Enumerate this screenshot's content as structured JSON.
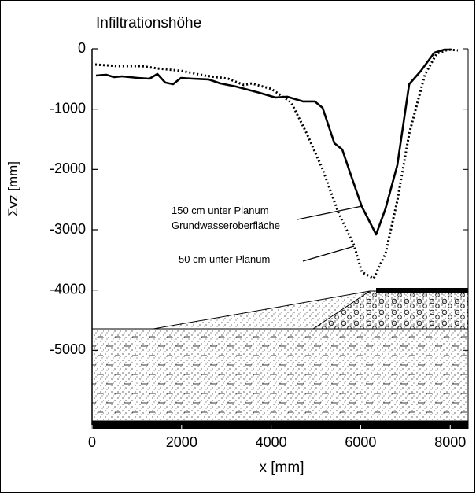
{
  "chart_data": {
    "type": "line",
    "title": "Infiltrationshöhe",
    "x_label": "x [mm]",
    "y_label": "Σvz [mm]",
    "xlim": [
      0,
      8400
    ],
    "xticks": [
      0,
      2000,
      4000,
      6000,
      8000
    ],
    "ylim": [
      -6300,
      0
    ],
    "yticks": [
      0,
      -1000,
      -2000,
      -3000,
      -4000,
      -5000
    ],
    "annotation": "Grundwasseroberfläche",
    "series": [
      {
        "name": "150 cm unter Planum",
        "color": "#000000",
        "dash": "solid",
        "x": [
          88,
          316,
          492,
          668,
          1019,
          1283,
          1459,
          1634,
          1810,
          1986,
          2250,
          2601,
          2865,
          3216,
          3743,
          4095,
          4359,
          4710,
          4974,
          5149,
          5413,
          5589,
          5765,
          6028,
          6345,
          6556,
          6819,
          7083,
          7346,
          7645,
          7873,
          8049
        ],
        "values": [
          -443,
          -430,
          -470,
          -456,
          -482,
          -495,
          -417,
          -560,
          -587,
          -482,
          -495,
          -508,
          -574,
          -626,
          -730,
          -808,
          -795,
          -873,
          -873,
          -978,
          -1565,
          -1669,
          -2060,
          -2621,
          -3078,
          -2647,
          -1930,
          -587,
          -365,
          -65,
          -13,
          -13
        ]
      },
      {
        "name": "50 cm unter Planum",
        "color": "#000000",
        "dash": "dotted",
        "x": [
          70,
          580,
          1107,
          1459,
          1986,
          2513,
          3040,
          3392,
          3568,
          4007,
          4446,
          4798,
          5149,
          5500,
          5852,
          6028,
          6292,
          6556,
          6819,
          7083,
          7434,
          7698,
          7961,
          8172
        ],
        "values": [
          -261,
          -287,
          -287,
          -326,
          -365,
          -443,
          -495,
          -600,
          -574,
          -665,
          -887,
          -1408,
          -1995,
          -2712,
          -3260,
          -3704,
          -3808,
          -3391,
          -2517,
          -1408,
          -430,
          -78,
          -13,
          -26
        ]
      }
    ]
  }
}
